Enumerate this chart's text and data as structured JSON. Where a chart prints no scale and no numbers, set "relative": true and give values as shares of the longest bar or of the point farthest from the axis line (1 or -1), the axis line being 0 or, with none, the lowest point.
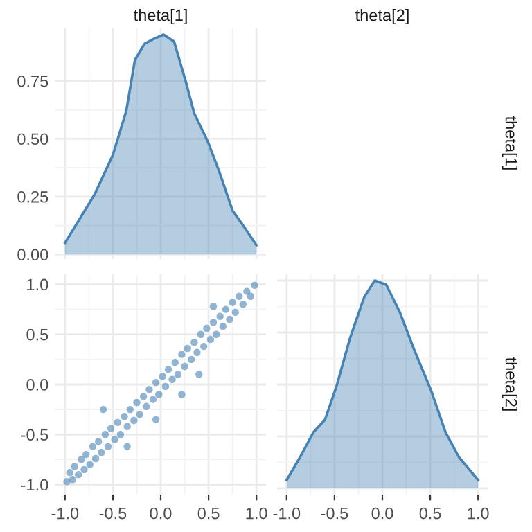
{
  "chart_data": [
    {
      "type": "area",
      "title": "theta[1]",
      "y2label": "theta[1]",
      "color": "#4682b4",
      "grid": true,
      "tick_labels": "y",
      "x": [
        -1,
        -0.69,
        -0.5,
        -0.36,
        -0.27,
        -0.17,
        -0.08,
        0.03,
        0.14,
        0.26,
        0.35,
        0.49,
        0.61,
        0.75,
        0.87,
        1
      ],
      "values": [
        0.05,
        0.26,
        0.43,
        0.62,
        0.84,
        0.91,
        0.93,
        0.95,
        0.92,
        0.75,
        0.61,
        0.49,
        0.36,
        0.19,
        0.12,
        0.04
      ],
      "xlim": [
        -1.1,
        1.1
      ],
      "ylim": [
        -0.02,
        0.98
      ],
      "xticks": [
        -1,
        -0.5,
        0,
        0.5,
        1
      ],
      "yticks": [
        {
          "value": 0,
          "label": "0.00"
        },
        0.25,
        {
          "value": 0.5,
          "label": "0.50"
        },
        0.75
      ]
    },
    {
      "type": "scatter",
      "color": "#4682b4",
      "grid": true,
      "marker": "circle",
      "xlim": [
        -1.1,
        1.1
      ],
      "ylim": [
        -1.1,
        1.1
      ],
      "xticks": [
        {
          "value": -1,
          "label": "-1.0"
        },
        -0.5,
        {
          "value": 0,
          "label": "0.0"
        },
        0.5,
        {
          "value": 1,
          "label": "1.0"
        }
      ],
      "yticks": [
        {
          "value": -1,
          "label": "-1.0"
        },
        -0.5,
        {
          "value": 0,
          "label": "0.0"
        },
        0.5,
        {
          "value": 1,
          "label": "1.0"
        }
      ],
      "x": [
        -0.98,
        -0.95,
        -0.92,
        -0.9,
        -0.86,
        -0.83,
        -0.8,
        -0.78,
        -0.74,
        -0.71,
        -0.68,
        -0.65,
        -0.62,
        -0.58,
        -0.55,
        -0.52,
        -0.48,
        -0.45,
        -0.42,
        -0.38,
        -0.35,
        -0.32,
        -0.28,
        -0.25,
        -0.22,
        -0.18,
        -0.15,
        -0.12,
        -0.08,
        -0.05,
        -0.02,
        0.02,
        0.05,
        0.08,
        0.12,
        0.15,
        0.18,
        0.22,
        0.25,
        0.28,
        0.32,
        0.35,
        0.38,
        0.42,
        0.45,
        0.48,
        0.52,
        0.55,
        0.58,
        0.62,
        0.65,
        0.68,
        0.72,
        0.75,
        0.78,
        0.82,
        0.86,
        0.9,
        0.94,
        0.98,
        0.22,
        -0.05,
        0.55,
        -0.6,
        0.4,
        -0.35
      ],
      "values": [
        -0.97,
        -0.88,
        -0.95,
        -0.82,
        -0.9,
        -0.75,
        -0.85,
        -0.7,
        -0.8,
        -0.62,
        -0.74,
        -0.57,
        -0.68,
        -0.5,
        -0.62,
        -0.44,
        -0.55,
        -0.38,
        -0.5,
        -0.32,
        -0.42,
        -0.25,
        -0.36,
        -0.18,
        -0.3,
        -0.12,
        -0.22,
        -0.05,
        -0.15,
        0.02,
        -0.1,
        0.08,
        -0.02,
        0.15,
        0.05,
        0.22,
        0.1,
        0.3,
        0.18,
        0.36,
        0.25,
        0.42,
        0.32,
        0.5,
        0.38,
        0.56,
        0.45,
        0.62,
        0.5,
        0.68,
        0.58,
        0.75,
        0.65,
        0.82,
        0.72,
        0.88,
        0.8,
        0.93,
        0.88,
        0.99,
        -0.1,
        -0.35,
        0.78,
        -0.25,
        0.1,
        -0.62
      ]
    },
    {
      "type": "area",
      "title": "theta[2]",
      "y2label": "theta[2]",
      "color": "#4682b4",
      "grid": true,
      "tick_labels": "x",
      "relative": true,
      "x": [
        -1,
        -0.86,
        -0.72,
        -0.6,
        -0.48,
        -0.34,
        -0.19,
        -0.08,
        0.04,
        0.18,
        0.33,
        0.51,
        0.66,
        0.8,
        1
      ],
      "values": [
        0.04,
        0.15,
        0.27,
        0.33,
        0.49,
        0.72,
        0.92,
        1,
        0.98,
        0.85,
        0.67,
        0.47,
        0.27,
        0.15,
        0.04
      ],
      "xlim": [
        -1.1,
        1.1
      ],
      "xticks": [
        {
          "value": -1,
          "label": "-1.0"
        },
        -0.5,
        {
          "value": 0,
          "label": "0.0"
        },
        0.5,
        {
          "value": 1,
          "label": "1.0"
        }
      ]
    }
  ]
}
